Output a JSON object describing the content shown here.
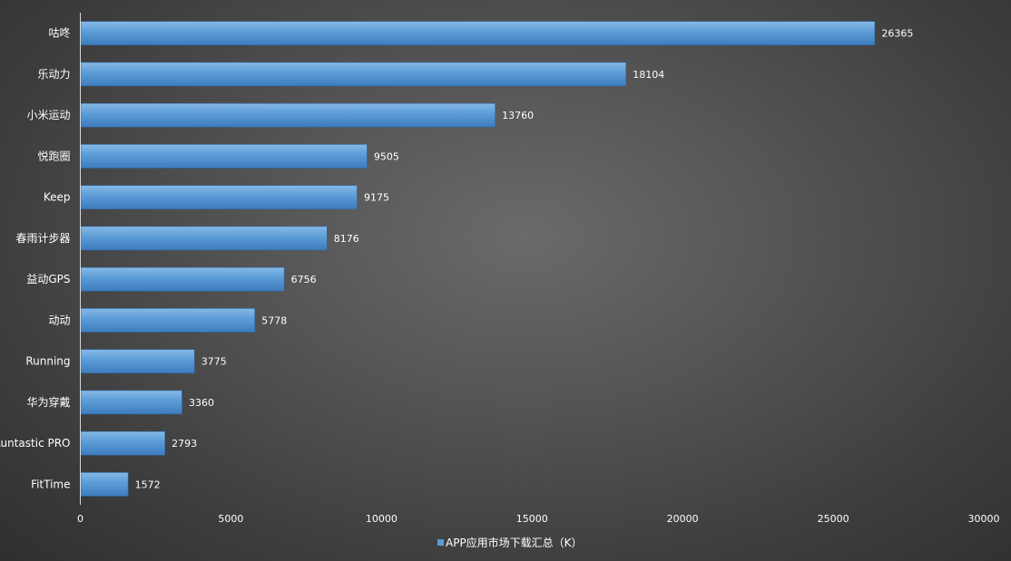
{
  "chart_data": {
    "type": "bar",
    "orientation": "horizontal",
    "categories": [
      "咕咚",
      "乐动力",
      "小米运动",
      "悦跑圈",
      "Keep",
      "春雨计步器",
      "益动GPS",
      "动动",
      "Running",
      "华为穿戴",
      "Runtastic PRO",
      "FitTime"
    ],
    "series": [
      {
        "name": "APP应用市场下载汇总（K）",
        "values": [
          26365,
          18104,
          13760,
          9505,
          9175,
          8176,
          6756,
          5778,
          3775,
          3360,
          2793,
          1572
        ]
      }
    ],
    "xlim": [
      0,
      30000
    ],
    "xticks": [
      0,
      5000,
      10000,
      15000,
      20000,
      25000,
      30000
    ],
    "title": "",
    "xlabel": "",
    "ylabel": "",
    "grid": false,
    "legend_position": "bottom",
    "colors": {
      "bar": "#5b9bd5",
      "bar_dark": "#3f7fc0",
      "bar_light": "#7fb4e6",
      "text": "#ffffff",
      "axis": "#d9d9d9"
    }
  }
}
